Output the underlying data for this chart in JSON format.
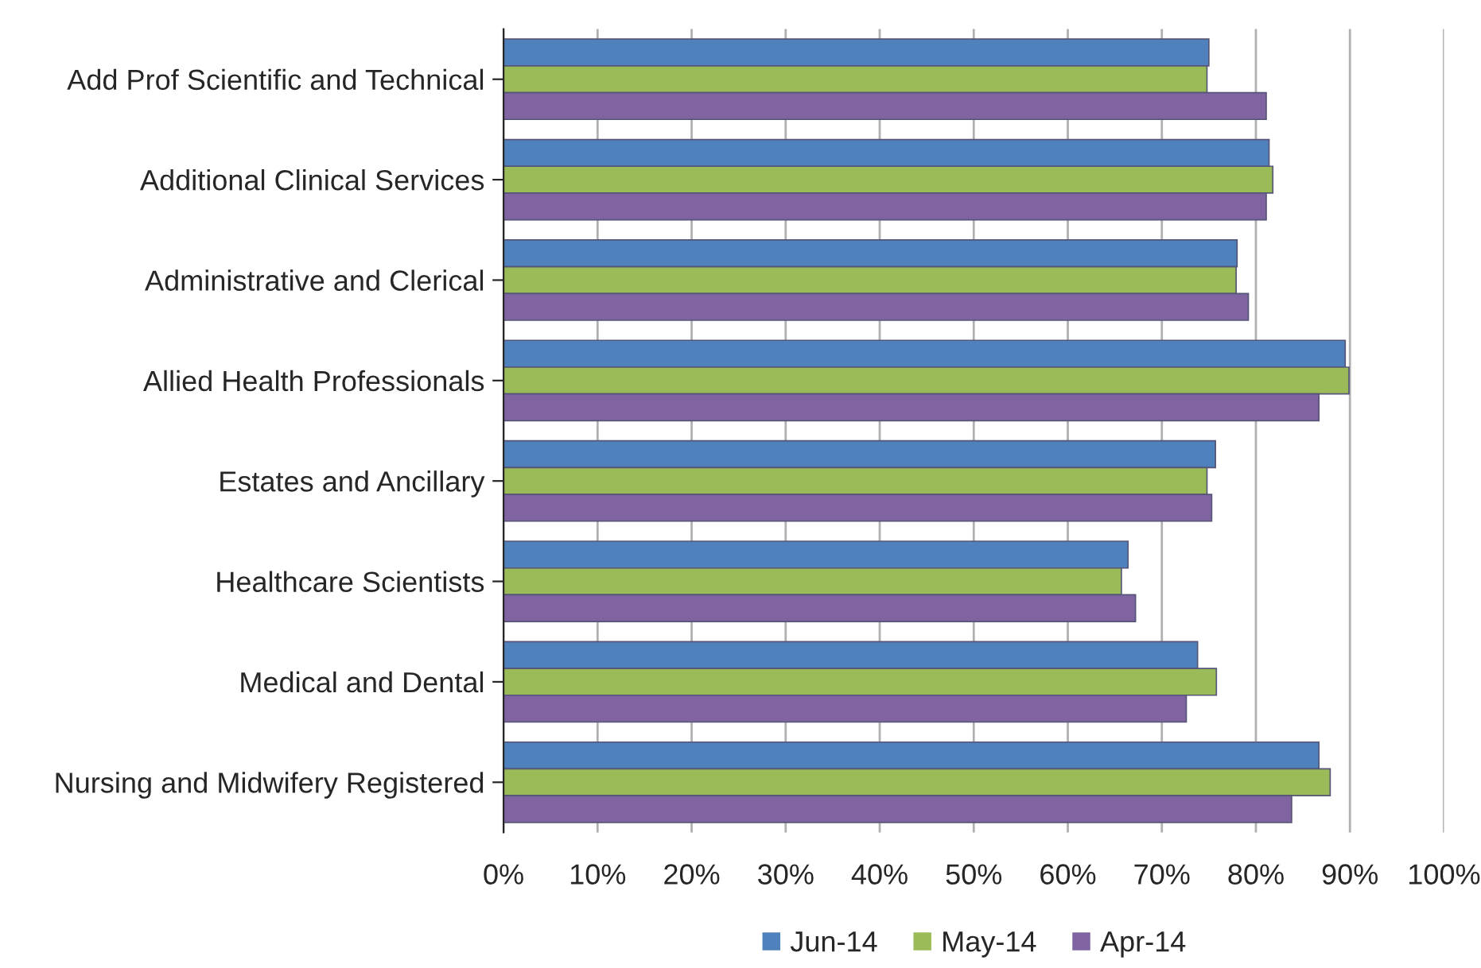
{
  "chart_data": {
    "type": "bar",
    "orientation": "horizontal",
    "categories": [
      "Add Prof Scientific and Technical",
      "Additional Clinical Services",
      "Administrative and Clerical",
      "Allied Health Professionals",
      "Estates and Ancillary",
      "Healthcare Scientists",
      "Medical and Dental",
      "Nursing and Midwifery Registered"
    ],
    "series": [
      {
        "name": "Jun-14",
        "color": "#4f81bd",
        "values": [
          75.0,
          81.4,
          78.0,
          89.5,
          75.7,
          66.4,
          73.8,
          86.7
        ]
      },
      {
        "name": "May-14",
        "color": "#9bbb59",
        "values": [
          74.8,
          81.8,
          77.9,
          89.9,
          74.8,
          65.7,
          75.8,
          87.9
        ]
      },
      {
        "name": "Apr-14",
        "color": "#8064a2",
        "values": [
          81.1,
          81.1,
          79.2,
          86.7,
          75.3,
          67.2,
          72.6,
          83.8
        ]
      }
    ],
    "xlim": [
      0,
      100
    ],
    "xticks": [
      {
        "value": 0,
        "label": "0%"
      },
      {
        "value": 10,
        "label": "10%"
      },
      {
        "value": 20,
        "label": "20%"
      },
      {
        "value": 30,
        "label": "30%"
      },
      {
        "value": 40,
        "label": "40%"
      },
      {
        "value": 50,
        "label": "50%"
      },
      {
        "value": 60,
        "label": "60%"
      },
      {
        "value": 70,
        "label": "70%"
      },
      {
        "value": 80,
        "label": "80%"
      },
      {
        "value": 90,
        "label": "90%"
      },
      {
        "value": 100,
        "label": "100%"
      }
    ],
    "grid": "x",
    "legend": "bottom"
  }
}
